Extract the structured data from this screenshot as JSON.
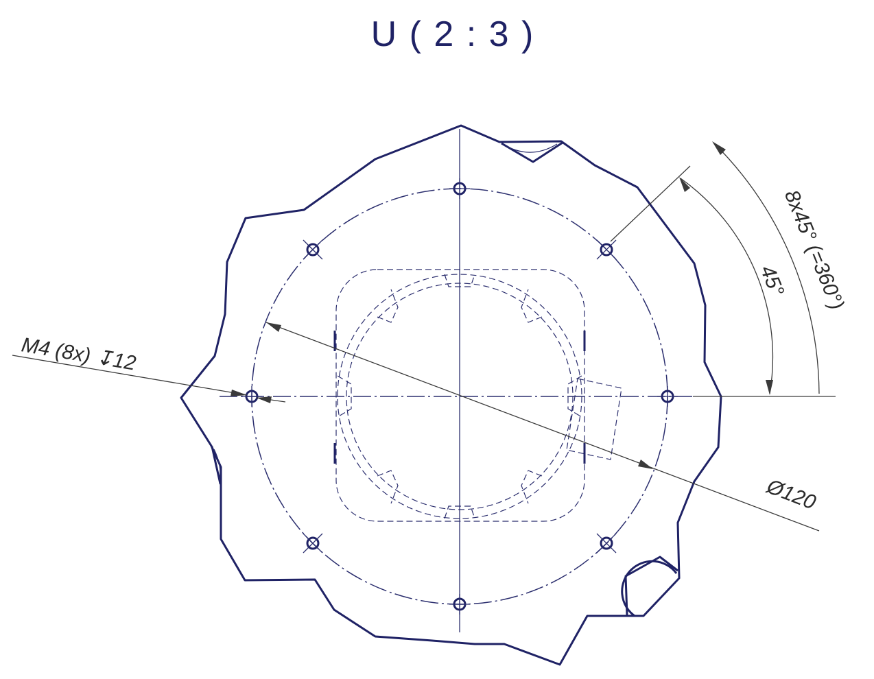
{
  "view_title": "U ( 2 : 3 )",
  "dimensions": {
    "thread_callout": "M4 (8x) ↧12",
    "diameter": "Ø120",
    "angle": "45°",
    "pattern": "8x45° (=360°)"
  },
  "colors": {
    "outline": "#1f2265",
    "dimension": "#3a3a3a"
  }
}
